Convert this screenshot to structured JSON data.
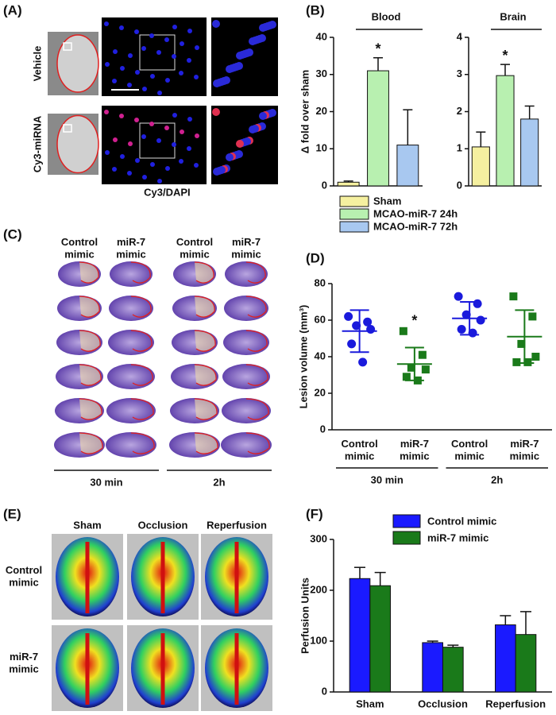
{
  "panel_labels": [
    "(A)",
    "(B)",
    "(C)",
    "(D)",
    "(E)",
    "(F)"
  ],
  "panel_a": {
    "rows": [
      "Vehicle",
      "Cy3-miRNA"
    ],
    "stain": [
      "Cy3",
      "/DAPI"
    ]
  },
  "panel_c": {
    "columns": [
      "Control mimic",
      "miR-7 mimic",
      "Control mimic",
      "miR-7 mimic"
    ],
    "groups": [
      "30 min",
      "2h"
    ]
  },
  "panel_e": {
    "columns": [
      "Sham",
      "Occlusion",
      "Reperfusion"
    ],
    "rows": [
      "Control mimic",
      "miR-7 mimic"
    ]
  },
  "chart_data": [
    {
      "type": "bar",
      "title": "Blood",
      "y_label": "Δ fold over sham",
      "categories": [
        "Sham",
        "MCAO-miR-7 24h",
        "MCAO-miR-7 72h"
      ],
      "colors": [
        "#f5f0a0",
        "#b8f0b0",
        "#a8c8f0"
      ],
      "values": [
        1,
        31,
        11
      ],
      "errors": [
        0.3,
        3.5,
        9.5
      ],
      "significance": [
        null,
        "*",
        null
      ],
      "ylim": [
        0,
        40
      ],
      "yticks": [
        0,
        10,
        20,
        30,
        40
      ],
      "legend": true
    },
    {
      "type": "bar",
      "title": "Brain",
      "colors": [
        "#f5f0a0",
        "#b8f0b0",
        "#a8c8f0"
      ],
      "values": [
        1.05,
        2.97,
        1.8
      ],
      "errors": [
        0.4,
        0.3,
        0.35
      ],
      "significance": [
        null,
        "*",
        null
      ],
      "ylim": [
        0,
        4
      ],
      "yticks": [
        0,
        1,
        2,
        3,
        4
      ]
    },
    {
      "type": "scatter",
      "y_label": "Lesion volume (mm³)",
      "categories": [
        "Control mimic",
        "miR-7 mimic",
        "Control mimic",
        "miR-7 mimic"
      ],
      "groups": [
        "30 min",
        "2h"
      ],
      "colors": [
        "#1a1adc",
        "#1a7a1a",
        "#1a1adc",
        "#1a7a1a"
      ],
      "markers": [
        "circle",
        "square",
        "circle",
        "square"
      ],
      "points": [
        [
          62,
          59,
          57,
          55,
          47,
          37
        ],
        [
          54,
          41,
          34,
          33,
          29,
          27
        ],
        [
          73,
          69,
          63,
          60,
          55,
          53
        ],
        [
          73,
          62,
          47,
          40,
          37,
          37
        ]
      ],
      "means": [
        54,
        36,
        61,
        51
      ],
      "sds": [
        11.5,
        9,
        9,
        14.5
      ],
      "significance": [
        null,
        "*",
        null,
        null
      ],
      "ylim": [
        0,
        80
      ],
      "yticks": [
        0,
        20,
        40,
        60,
        80
      ]
    },
    {
      "type": "bar",
      "y_label": "Perfusion Units",
      "categories": [
        "Sham",
        "Occlusion",
        "Reperfusion"
      ],
      "series": [
        {
          "name": "Control mimic",
          "color": "#1a1aff",
          "values": [
            223,
            97,
            132
          ],
          "errors": [
            22,
            3,
            18
          ]
        },
        {
          "name": "miR-7 mimic",
          "color": "#1a7a1a",
          "values": [
            209,
            88,
            113
          ],
          "errors": [
            26,
            4,
            45
          ]
        }
      ],
      "ylim": [
        0,
        300
      ],
      "yticks": [
        0,
        100,
        200,
        300
      ],
      "legend": true
    }
  ]
}
